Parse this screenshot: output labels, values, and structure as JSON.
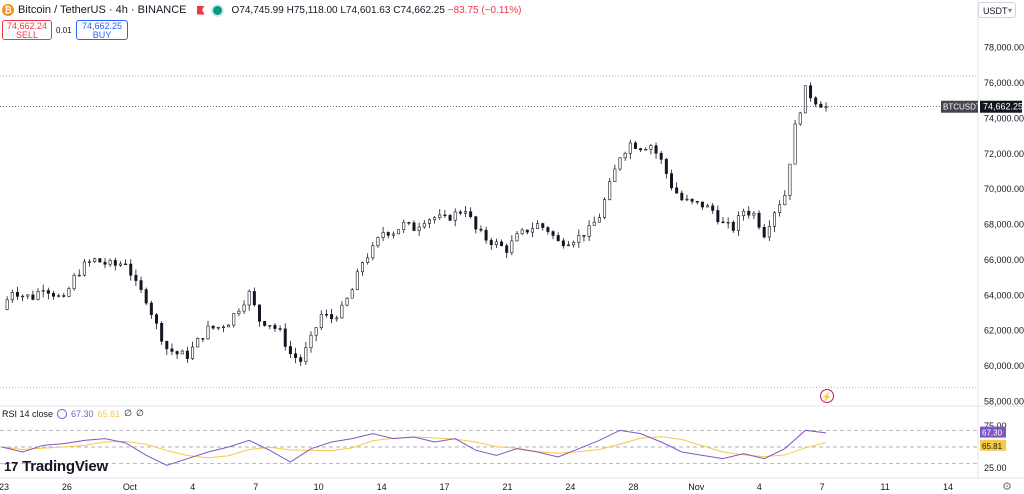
{
  "header": {
    "symbol": "Bitcoin / TetherUS · 4h · BINANCE",
    "open_label": "O",
    "open": "74,745.99",
    "high_label": "H",
    "high": "75,118.00",
    "low_label": "L",
    "low": "74,601.63",
    "close_label": "C",
    "close": "74,662.25",
    "change": "−83.75 (−0.11%)"
  },
  "trade": {
    "sell_price": "74,662.24",
    "sell_label": "SELL",
    "spread": "0.01",
    "buy_price": "74,662.25",
    "buy_label": "BUY"
  },
  "currency": "USDT",
  "rsi": {
    "label": "RSI 14 close",
    "value": "67.30",
    "ma": "65.81",
    "extra1": "∅",
    "extra2": "∅",
    "ticks": [
      "75.00",
      "25.00"
    ]
  },
  "brand": "TradingView",
  "colors": {
    "up": "#089981",
    "down": "#f23645",
    "rsi_line": "#7e57c2",
    "rsi_ma": "#f7c948",
    "accent": "#2962ff"
  },
  "chart_data": {
    "type": "candlestick",
    "symbol": "BTCUSDT",
    "interval": "4h",
    "last_price": "74,662.25",
    "y_ticks": [
      "78,000.00",
      "76,000.00",
      "74,000.00",
      "72,000.00",
      "70,000.00",
      "68,000.00",
      "66,000.00",
      "64,000.00",
      "62,000.00",
      "60,000.00",
      "58,000.00"
    ],
    "x_ticks": [
      "23",
      "26",
      "Oct",
      "4",
      "7",
      "10",
      "14",
      "17",
      "21",
      "24",
      "28",
      "Nov",
      "4",
      "7",
      "11",
      "14"
    ],
    "ylim": [
      57800,
      79000
    ],
    "approx_close_path": [
      [
        0,
        63200
      ],
      [
        4,
        64300
      ],
      [
        8,
        64000
      ],
      [
        12,
        63900
      ],
      [
        16,
        64500
      ],
      [
        20,
        64100
      ],
      [
        24,
        63700
      ],
      [
        28,
        65000
      ],
      [
        32,
        65700
      ],
      [
        36,
        66000
      ],
      [
        40,
        65800
      ],
      [
        44,
        65700
      ],
      [
        48,
        65900
      ],
      [
        52,
        64600
      ],
      [
        56,
        63800
      ],
      [
        60,
        62300
      ],
      [
        64,
        61000
      ],
      [
        68,
        60700
      ],
      [
        72,
        60600
      ],
      [
        76,
        61400
      ],
      [
        80,
        62100
      ],
      [
        84,
        62200
      ],
      [
        88,
        62500
      ],
      [
        92,
        63300
      ],
      [
        96,
        64100
      ],
      [
        100,
        62600
      ],
      [
        104,
        62400
      ],
      [
        108,
        61900
      ],
      [
        112,
        60700
      ],
      [
        116,
        60300
      ],
      [
        120,
        61500
      ],
      [
        124,
        62900
      ],
      [
        128,
        62700
      ],
      [
        132,
        63200
      ],
      [
        136,
        64300
      ],
      [
        140,
        65900
      ],
      [
        144,
        66600
      ],
      [
        148,
        67600
      ],
      [
        152,
        67600
      ],
      [
        156,
        68000
      ],
      [
        160,
        67800
      ],
      [
        164,
        68300
      ],
      [
        168,
        68400
      ],
      [
        172,
        68300
      ],
      [
        176,
        68600
      ],
      [
        180,
        68900
      ],
      [
        184,
        67700
      ],
      [
        188,
        67200
      ],
      [
        192,
        66900
      ],
      [
        196,
        66600
      ],
      [
        200,
        67300
      ],
      [
        204,
        67700
      ],
      [
        208,
        68000
      ],
      [
        212,
        67700
      ],
      [
        216,
        67000
      ],
      [
        220,
        67100
      ],
      [
        224,
        67300
      ],
      [
        228,
        67700
      ],
      [
        232,
        68500
      ],
      [
        236,
        70200
      ],
      [
        240,
        71900
      ],
      [
        244,
        72600
      ],
      [
        248,
        72400
      ],
      [
        252,
        72500
      ],
      [
        256,
        71600
      ],
      [
        260,
        70200
      ],
      [
        264,
        69400
      ],
      [
        268,
        69200
      ],
      [
        272,
        69100
      ],
      [
        276,
        68800
      ],
      [
        280,
        68000
      ],
      [
        284,
        67800
      ],
      [
        288,
        68800
      ],
      [
        292,
        68600
      ],
      [
        296,
        67500
      ],
      [
        300,
        68800
      ],
      [
        304,
        69700
      ],
      [
        308,
        73500
      ],
      [
        312,
        75600
      ],
      [
        316,
        75000
      ],
      [
        320,
        74662
      ]
    ],
    "horizontal_lines": [
      76400,
      58800
    ],
    "rsi_series": [
      [
        0,
        50
      ],
      [
        8,
        44
      ],
      [
        16,
        52
      ],
      [
        24,
        54
      ],
      [
        32,
        58
      ],
      [
        40,
        60
      ],
      [
        48,
        55
      ],
      [
        56,
        40
      ],
      [
        64,
        28
      ],
      [
        72,
        36
      ],
      [
        80,
        44
      ],
      [
        88,
        50
      ],
      [
        96,
        58
      ],
      [
        104,
        46
      ],
      [
        112,
        32
      ],
      [
        120,
        48
      ],
      [
        128,
        56
      ],
      [
        136,
        60
      ],
      [
        144,
        66
      ],
      [
        152,
        60
      ],
      [
        160,
        62
      ],
      [
        168,
        56
      ],
      [
        176,
        60
      ],
      [
        184,
        46
      ],
      [
        192,
        40
      ],
      [
        200,
        48
      ],
      [
        208,
        44
      ],
      [
        216,
        38
      ],
      [
        224,
        48
      ],
      [
        232,
        58
      ],
      [
        240,
        70
      ],
      [
        248,
        66
      ],
      [
        256,
        56
      ],
      [
        264,
        44
      ],
      [
        272,
        40
      ],
      [
        280,
        36
      ],
      [
        288,
        42
      ],
      [
        296,
        36
      ],
      [
        304,
        48
      ],
      [
        312,
        70
      ],
      [
        320,
        67
      ]
    ]
  }
}
